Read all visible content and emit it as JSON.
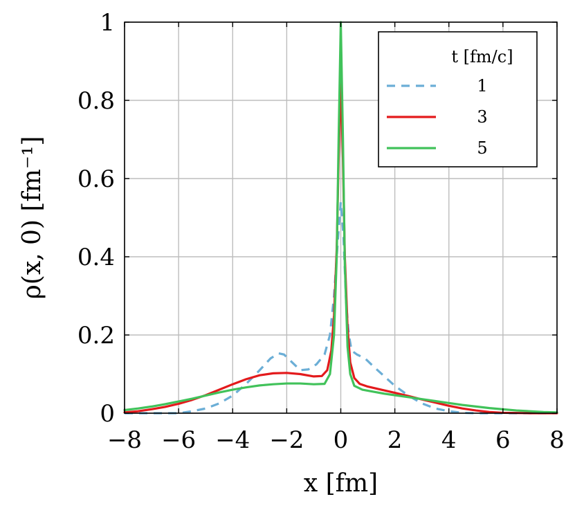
{
  "chart_data": {
    "type": "line",
    "title": "",
    "xlabel": "x [fm]",
    "ylabel": "ρ(x, 0) [fm⁻¹]",
    "xlim": [
      -8,
      8
    ],
    "ylim": [
      0,
      1
    ],
    "x_ticks": [
      -8,
      -6,
      -4,
      -2,
      0,
      2,
      4,
      6,
      8
    ],
    "x_tick_labels": [
      "−8",
      "−6",
      "−4",
      "−2",
      "0",
      "2",
      "4",
      "6",
      "8"
    ],
    "y_ticks": [
      0,
      0.2,
      0.4,
      0.6,
      0.8,
      1
    ],
    "y_tick_labels": [
      "0",
      "0.2",
      "0.4",
      "0.6",
      "0.8",
      "1"
    ],
    "grid": true,
    "legend": {
      "title": "t [fm/c]",
      "position": "top-right"
    },
    "series": [
      {
        "name": "1",
        "color": "#6baed6",
        "dash": "dashed",
        "points": [
          [
            -8,
            0
          ],
          [
            -7,
            0
          ],
          [
            -6,
            0.0
          ],
          [
            -5.5,
            0.005
          ],
          [
            -5,
            0.012
          ],
          [
            -4.5,
            0.025
          ],
          [
            -4,
            0.045
          ],
          [
            -3.5,
            0.075
          ],
          [
            -3,
            0.11
          ],
          [
            -2.6,
            0.14
          ],
          [
            -2.3,
            0.153
          ],
          [
            -2.1,
            0.15
          ],
          [
            -1.8,
            0.13
          ],
          [
            -1.5,
            0.11
          ],
          [
            -1.2,
            0.112
          ],
          [
            -0.9,
            0.125
          ],
          [
            -0.6,
            0.15
          ],
          [
            -0.4,
            0.2
          ],
          [
            -0.25,
            0.3
          ],
          [
            -0.1,
            0.45
          ],
          [
            0,
            0.54
          ],
          [
            0.1,
            0.45
          ],
          [
            0.2,
            0.28
          ],
          [
            0.3,
            0.2
          ],
          [
            0.4,
            0.16
          ],
          [
            0.6,
            0.15
          ],
          [
            0.9,
            0.14
          ],
          [
            1.2,
            0.12
          ],
          [
            1.6,
            0.095
          ],
          [
            2,
            0.07
          ],
          [
            2.5,
            0.045
          ],
          [
            3,
            0.025
          ],
          [
            3.5,
            0.012
          ],
          [
            4,
            0.005
          ],
          [
            4.5,
            0.001
          ],
          [
            5,
            0
          ],
          [
            6,
            0
          ],
          [
            8,
            0
          ]
        ]
      },
      {
        "name": "3",
        "color": "#e31a1c",
        "dash": "solid",
        "points": [
          [
            -8,
            0.002
          ],
          [
            -7.5,
            0.005
          ],
          [
            -7,
            0.01
          ],
          [
            -6.5,
            0.016
          ],
          [
            -6,
            0.024
          ],
          [
            -5.5,
            0.034
          ],
          [
            -5,
            0.046
          ],
          [
            -4.5,
            0.06
          ],
          [
            -4,
            0.074
          ],
          [
            -3.5,
            0.087
          ],
          [
            -3,
            0.097
          ],
          [
            -2.5,
            0.102
          ],
          [
            -2,
            0.103
          ],
          [
            -1.5,
            0.1
          ],
          [
            -1,
            0.094
          ],
          [
            -0.7,
            0.095
          ],
          [
            -0.5,
            0.11
          ],
          [
            -0.35,
            0.16
          ],
          [
            -0.25,
            0.25
          ],
          [
            -0.15,
            0.42
          ],
          [
            -0.08,
            0.65
          ],
          [
            0,
            0.85
          ],
          [
            0.08,
            0.65
          ],
          [
            0.15,
            0.4
          ],
          [
            0.25,
            0.22
          ],
          [
            0.35,
            0.13
          ],
          [
            0.5,
            0.09
          ],
          [
            0.7,
            0.075
          ],
          [
            1,
            0.068
          ],
          [
            1.5,
            0.06
          ],
          [
            2,
            0.052
          ],
          [
            2.5,
            0.044
          ],
          [
            3,
            0.035
          ],
          [
            3.5,
            0.027
          ],
          [
            4,
            0.019
          ],
          [
            4.5,
            0.012
          ],
          [
            5,
            0.007
          ],
          [
            5.5,
            0.003
          ],
          [
            6,
            0.001
          ],
          [
            7,
            0
          ],
          [
            8,
            0
          ]
        ]
      },
      {
        "name": "5",
        "color": "#41c25a",
        "dash": "solid",
        "points": [
          [
            -8,
            0.008
          ],
          [
            -7.5,
            0.012
          ],
          [
            -7,
            0.017
          ],
          [
            -6.5,
            0.023
          ],
          [
            -6,
            0.03
          ],
          [
            -5.5,
            0.037
          ],
          [
            -5,
            0.045
          ],
          [
            -4.5,
            0.053
          ],
          [
            -4,
            0.06
          ],
          [
            -3.5,
            0.066
          ],
          [
            -3,
            0.071
          ],
          [
            -2.5,
            0.074
          ],
          [
            -2,
            0.076
          ],
          [
            -1.5,
            0.076
          ],
          [
            -1,
            0.074
          ],
          [
            -0.6,
            0.075
          ],
          [
            -0.4,
            0.1
          ],
          [
            -0.25,
            0.2
          ],
          [
            -0.15,
            0.4
          ],
          [
            -0.08,
            0.7
          ],
          [
            0,
            1.0
          ],
          [
            0.08,
            0.7
          ],
          [
            0.15,
            0.38
          ],
          [
            0.25,
            0.17
          ],
          [
            0.35,
            0.1
          ],
          [
            0.5,
            0.07
          ],
          [
            0.8,
            0.06
          ],
          [
            1.2,
            0.055
          ],
          [
            1.6,
            0.05
          ],
          [
            2,
            0.046
          ],
          [
            2.5,
            0.041
          ],
          [
            3,
            0.036
          ],
          [
            3.5,
            0.031
          ],
          [
            4,
            0.026
          ],
          [
            4.5,
            0.021
          ],
          [
            5,
            0.017
          ],
          [
            5.5,
            0.013
          ],
          [
            6,
            0.01
          ],
          [
            6.5,
            0.007
          ],
          [
            7,
            0.005
          ],
          [
            7.5,
            0.003
          ],
          [
            8,
            0.002
          ]
        ]
      }
    ]
  }
}
